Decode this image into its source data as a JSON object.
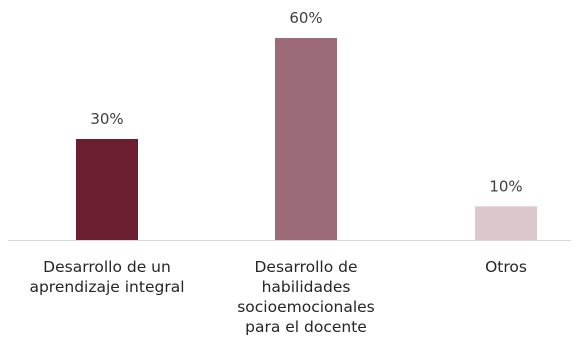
{
  "chart_data": {
    "type": "bar",
    "title": "",
    "xlabel": "",
    "ylabel": "",
    "ylim": [
      0,
      60
    ],
    "grid": false,
    "legend": "none",
    "categories": [
      [
        "Desarrollo de un",
        "aprendizaje integral"
      ],
      [
        "Desarrollo de",
        "habilidades",
        "socioemocionales",
        "para el docente"
      ],
      [
        "Otros"
      ]
    ],
    "values": [
      30,
      60,
      10
    ],
    "value_labels": [
      "30%",
      "60%",
      "10%"
    ],
    "colors": [
      "#6b1e30",
      "#9c6b77",
      "#dcc7cc"
    ],
    "unit": "%"
  }
}
